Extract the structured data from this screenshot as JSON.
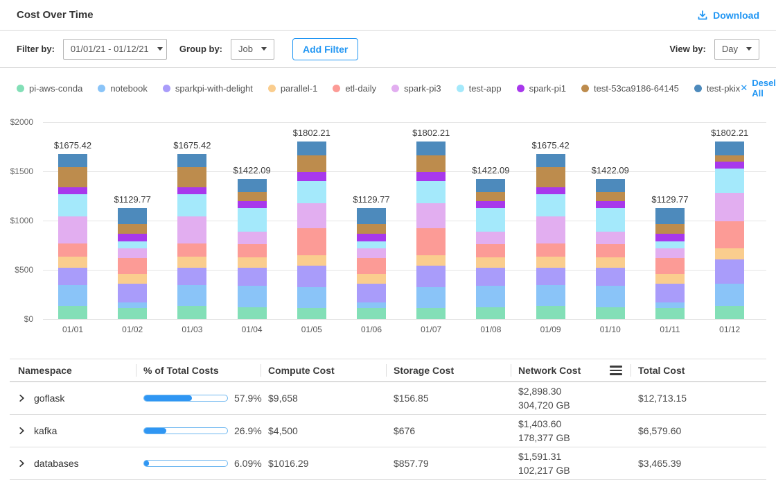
{
  "header": {
    "title": "Cost Over Time",
    "download_label": "Download"
  },
  "filters": {
    "filter_by_label": "Filter by:",
    "date_range_value": "01/01/21 - 01/12/21",
    "group_by_label": "Group by:",
    "group_by_value": "Job",
    "add_filter_label": "Add Filter",
    "view_by_label": "View by:",
    "view_by_value": "Day"
  },
  "legend": {
    "deselect_all_label": "Deselect All",
    "deselect_icon": "✕"
  },
  "chart_data": {
    "type": "bar",
    "stacked": true,
    "title": "",
    "xlabel": "",
    "ylabel": "",
    "ylim": [
      0,
      2000
    ],
    "grid": true,
    "legend_position": "top",
    "yticks": [
      {
        "label": "$0",
        "value": 0
      },
      {
        "label": "$500",
        "value": 500
      },
      {
        "label": "$1000",
        "value": 1000
      },
      {
        "label": "$1500",
        "value": 1500
      },
      {
        "label": "$2000",
        "value": 2000
      }
    ],
    "categories": [
      "01/01",
      "01/02",
      "01/03",
      "01/04",
      "01/05",
      "01/06",
      "01/07",
      "01/08",
      "01/09",
      "01/10",
      "01/11",
      "01/12"
    ],
    "bar_total_labels": [
      "$1675.42",
      "$1129.77",
      "$1675.42",
      "$1422.09",
      "$1802.21",
      "$1129.77",
      "$1802.21",
      "$1422.09",
      "$1675.42",
      "$1422.09",
      "$1129.77",
      "$1802.21"
    ],
    "bar_totals": [
      1675.42,
      1129.77,
      1675.42,
      1422.09,
      1802.21,
      1129.77,
      1802.21,
      1422.09,
      1675.42,
      1422.09,
      1129.77,
      1802.21
    ],
    "series": [
      {
        "name": "pi-aws-conda",
        "color": "#83dfb7",
        "values": [
          132,
          110,
          132,
          118,
          114,
          110,
          114,
          118,
          132,
          118,
          110,
          130
        ]
      },
      {
        "name": "notebook",
        "color": "#8ac4f8",
        "values": [
          212,
          57,
          212,
          221,
          207,
          57,
          207,
          221,
          212,
          221,
          57,
          230
        ]
      },
      {
        "name": "sparkpi-with-delight",
        "color": "#a99cfa",
        "values": [
          176,
          190,
          176,
          184,
          221,
          190,
          221,
          184,
          176,
          184,
          190,
          245
        ]
      },
      {
        "name": "parallel-1",
        "color": "#facd8e",
        "values": [
          110,
          100,
          110,
          103,
          107,
          100,
          107,
          103,
          110,
          103,
          100,
          115
        ]
      },
      {
        "name": "etl-daily",
        "color": "#fc9b96",
        "values": [
          139,
          160,
          139,
          132,
          270,
          160,
          270,
          132,
          139,
          132,
          160,
          276
        ]
      },
      {
        "name": "spark-pi3",
        "color": "#e2aef0",
        "values": [
          270,
          99,
          270,
          132,
          256,
          99,
          256,
          132,
          270,
          132,
          99,
          284
        ]
      },
      {
        "name": "test-app",
        "color": "#a4e9fb",
        "values": [
          227,
          76,
          227,
          236,
          228,
          76,
          228,
          236,
          227,
          236,
          76,
          245
        ]
      },
      {
        "name": "spark-pi1",
        "color": "#a838ec",
        "values": [
          73,
          74,
          73,
          74,
          92,
          74,
          92,
          74,
          73,
          74,
          74,
          77
        ]
      },
      {
        "name": "test-53ca9186-64145",
        "color": "#bd8c4d",
        "values": [
          205,
          99,
          205,
          88,
          164,
          99,
          164,
          88,
          205,
          88,
          99,
          61
        ]
      },
      {
        "name": "test-pkix",
        "color": "#4d8abc",
        "values": [
          131.42,
          164.77,
          131.42,
          134.09,
          143.21,
          164.77,
          143.21,
          134.09,
          131.42,
          134.09,
          164.77,
          139.21
        ]
      }
    ]
  },
  "table": {
    "columns": [
      "Namespace",
      "% of Total Costs",
      "Compute Cost",
      "Storage Cost",
      "Network  Cost",
      "Total Cost"
    ],
    "rows": [
      {
        "namespace": "goflask",
        "percent": "57.9%",
        "percent_value": 57.9,
        "compute": "$9,658",
        "storage": "$156.85",
        "network_cost": "$2,898.30",
        "network_gb": "304,720 GB",
        "total": "$12,713.15"
      },
      {
        "namespace": "kafka",
        "percent": "26.9%",
        "percent_value": 26.9,
        "compute": "$4,500",
        "storage": "$676",
        "network_cost": "$1,403.60",
        "network_gb": "178,377 GB",
        "total": "$6,579.60"
      },
      {
        "namespace": "databases",
        "percent": "6.09%",
        "percent_value": 6.09,
        "compute": "$1016.29",
        "storage": "$857.79",
        "network_cost": "$1,591.31",
        "network_gb": "102,217 GB",
        "total": "$3,465.39"
      }
    ]
  }
}
